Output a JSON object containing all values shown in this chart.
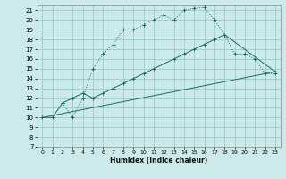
{
  "xlabel": "Humidex (Indice chaleur)",
  "bg_color": "#cceaea",
  "grid_color": "#99cccc",
  "line_color": "#1a6b5a",
  "xlim": [
    -0.5,
    23.5
  ],
  "ylim": [
    7,
    21.5
  ],
  "xticks": [
    0,
    1,
    2,
    3,
    4,
    5,
    6,
    7,
    8,
    9,
    10,
    11,
    12,
    13,
    14,
    15,
    16,
    17,
    18,
    19,
    20,
    21,
    22,
    23
  ],
  "yticks": [
    7,
    8,
    9,
    10,
    11,
    12,
    13,
    14,
    15,
    16,
    17,
    18,
    19,
    20,
    21
  ],
  "curve1_x": [
    2,
    3,
    4,
    5,
    6,
    7,
    8,
    9,
    10,
    11,
    12,
    13,
    14,
    15,
    16,
    17,
    18,
    19,
    20,
    21,
    22,
    23
  ],
  "curve1_y": [
    11.5,
    10.0,
    12.0,
    15.0,
    16.5,
    17.5,
    19.0,
    19.0,
    19.5,
    20.0,
    20.5,
    20.0,
    21.0,
    21.2,
    21.3,
    20.0,
    18.5,
    16.5,
    16.5,
    16.0,
    14.5,
    14.5
  ],
  "curve2_x": [
    0,
    1,
    2,
    3,
    4,
    5,
    6,
    7,
    8,
    9,
    10,
    11,
    12,
    13,
    14,
    15,
    16,
    17,
    18,
    23
  ],
  "curve2_y": [
    10.0,
    10.0,
    11.5,
    12.0,
    12.5,
    12.0,
    12.5,
    13.0,
    13.5,
    14.0,
    14.5,
    15.0,
    15.5,
    16.0,
    16.5,
    17.0,
    17.5,
    18.0,
    18.5,
    14.7
  ],
  "curve3_x": [
    0,
    23
  ],
  "curve3_y": [
    10.0,
    14.7
  ]
}
